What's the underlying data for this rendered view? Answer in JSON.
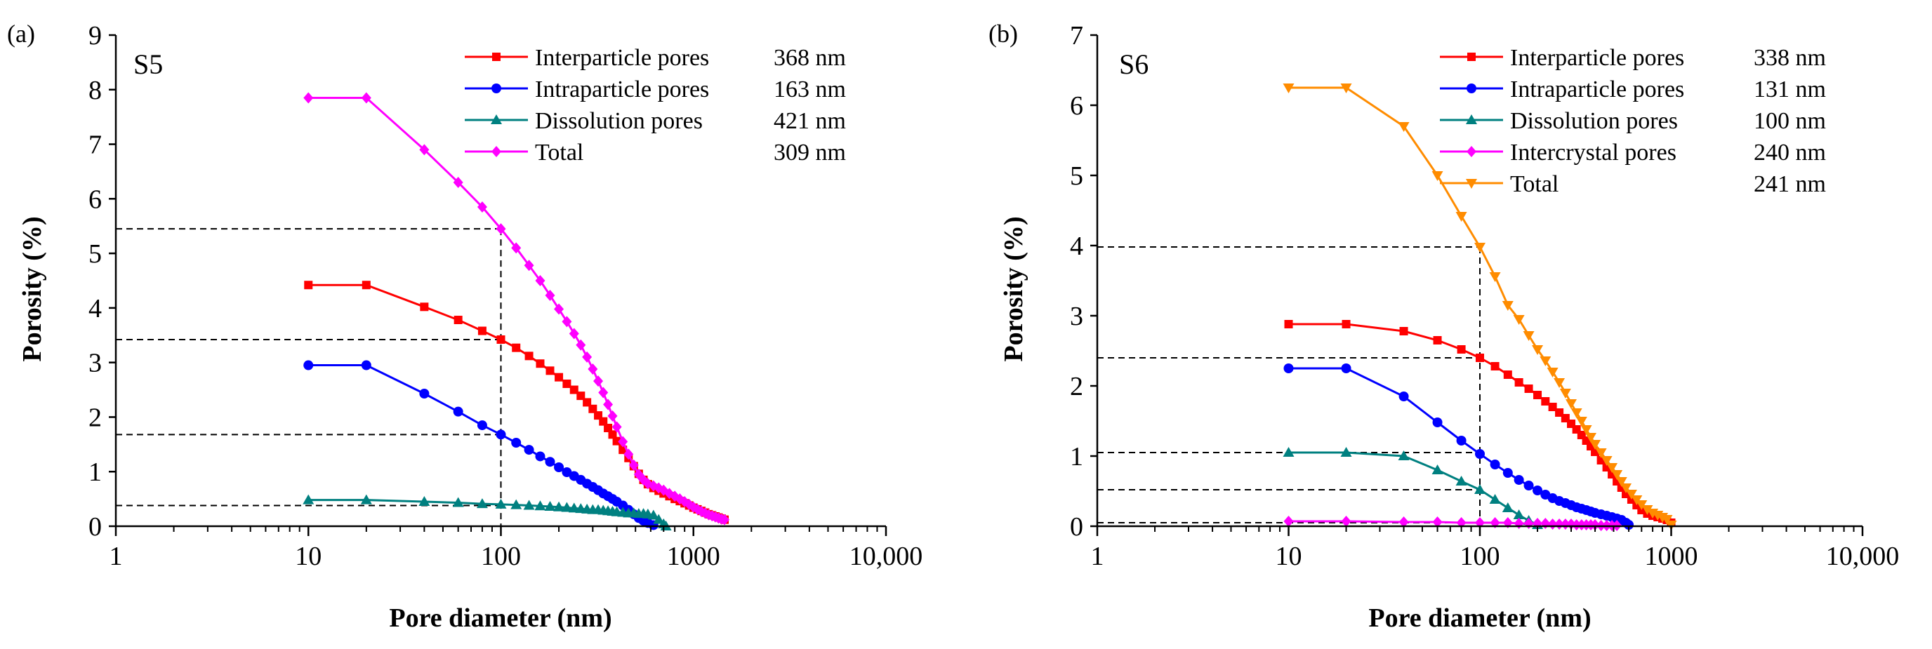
{
  "figure": {
    "panels": [
      "(a)",
      "(b)"
    ]
  },
  "chart_data": [
    {
      "type": "line",
      "panel_label": "(a)",
      "title": "S5",
      "xlabel": "Pore diameter (nm)",
      "ylabel": "Porosity (%)",
      "xscale": "log",
      "xlim": [
        1,
        10000
      ],
      "ylim": [
        0,
        9
      ],
      "x_ticks": [
        1,
        10,
        100,
        1000,
        10000
      ],
      "x_tick_labels": [
        "1",
        "10",
        "100",
        "1000",
        "10,000"
      ],
      "y_ticks": [
        0,
        1,
        2,
        3,
        4,
        5,
        6,
        7,
        8,
        9
      ],
      "y_tick_labels": [
        "0",
        "1",
        "2",
        "3",
        "4",
        "5",
        "6",
        "7",
        "8",
        "9"
      ],
      "legend_position": "top-right",
      "guides": {
        "x": 100,
        "y": [
          5.45,
          3.42,
          1.68,
          0.38
        ]
      },
      "series": [
        {
          "name": "Interparticle pores",
          "value_label": "368 nm",
          "color": "#ff0000",
          "marker": "square",
          "x": [
            10,
            20,
            40,
            60,
            80,
            100,
            120,
            140,
            160,
            180,
            200,
            220,
            240,
            260,
            280,
            300,
            320,
            340,
            360,
            380,
            400,
            430,
            460,
            490,
            520,
            550,
            580,
            620,
            660,
            700,
            750,
            800,
            850,
            900,
            950,
            1000,
            1050,
            1100,
            1150,
            1200,
            1250,
            1300,
            1350,
            1400,
            1450
          ],
          "y": [
            4.42,
            4.42,
            4.02,
            3.78,
            3.58,
            3.42,
            3.27,
            3.12,
            2.98,
            2.85,
            2.73,
            2.61,
            2.5,
            2.39,
            2.27,
            2.15,
            2.03,
            1.92,
            1.8,
            1.68,
            1.56,
            1.4,
            1.25,
            1.1,
            0.96,
            0.85,
            0.77,
            0.7,
            0.65,
            0.6,
            0.55,
            0.5,
            0.46,
            0.42,
            0.38,
            0.34,
            0.31,
            0.28,
            0.25,
            0.22,
            0.2,
            0.18,
            0.16,
            0.14,
            0.12
          ]
        },
        {
          "name": "Intraparticle pores",
          "value_label": "163 nm",
          "color": "#0000ff",
          "marker": "circle",
          "x": [
            10,
            20,
            40,
            60,
            80,
            100,
            120,
            140,
            160,
            180,
            200,
            220,
            240,
            260,
            280,
            300,
            320,
            340,
            360,
            380,
            400,
            430,
            460,
            490,
            520,
            550,
            580,
            620
          ],
          "y": [
            2.95,
            2.95,
            2.43,
            2.1,
            1.85,
            1.68,
            1.53,
            1.4,
            1.28,
            1.18,
            1.08,
            0.99,
            0.92,
            0.85,
            0.78,
            0.72,
            0.66,
            0.6,
            0.55,
            0.5,
            0.45,
            0.38,
            0.3,
            0.22,
            0.15,
            0.1,
            0.06,
            0.02
          ]
        },
        {
          "name": "Dissolution pores",
          "value_label": "421 nm",
          "color": "#008080",
          "marker": "triangle",
          "x": [
            10,
            20,
            40,
            60,
            80,
            100,
            120,
            140,
            160,
            180,
            200,
            220,
            240,
            260,
            280,
            300,
            320,
            340,
            360,
            380,
            400,
            430,
            460,
            490,
            520,
            550,
            580,
            620,
            660,
            700,
            720
          ],
          "y": [
            0.48,
            0.48,
            0.45,
            0.43,
            0.41,
            0.4,
            0.39,
            0.38,
            0.37,
            0.36,
            0.35,
            0.34,
            0.33,
            0.32,
            0.31,
            0.3,
            0.3,
            0.29,
            0.28,
            0.27,
            0.26,
            0.25,
            0.24,
            0.24,
            0.23,
            0.23,
            0.22,
            0.2,
            0.12,
            0.04,
            0.0
          ]
        },
        {
          "name": "Total",
          "value_label": "309 nm",
          "color": "#ff00ff",
          "marker": "diamond",
          "x": [
            10,
            20,
            40,
            60,
            80,
            100,
            120,
            140,
            160,
            180,
            200,
            220,
            240,
            260,
            280,
            300,
            320,
            340,
            360,
            380,
            400,
            430,
            460,
            490,
            520,
            550,
            580,
            620,
            660,
            700,
            750,
            800,
            850,
            900,
            950,
            1000,
            1050,
            1100,
            1150,
            1200,
            1250,
            1300,
            1350,
            1400,
            1450
          ],
          "y": [
            7.85,
            7.85,
            6.9,
            6.3,
            5.85,
            5.45,
            5.1,
            4.78,
            4.5,
            4.23,
            3.98,
            3.75,
            3.53,
            3.32,
            3.1,
            2.88,
            2.66,
            2.45,
            2.23,
            2.02,
            1.82,
            1.55,
            1.32,
            1.12,
            0.95,
            0.85,
            0.78,
            0.74,
            0.7,
            0.66,
            0.6,
            0.55,
            0.5,
            0.45,
            0.4,
            0.35,
            0.31,
            0.27,
            0.24,
            0.21,
            0.19,
            0.17,
            0.15,
            0.13,
            0.12
          ]
        }
      ]
    },
    {
      "type": "line",
      "panel_label": "(b)",
      "title": "S6",
      "xlabel": "Pore diameter (nm)",
      "ylabel": "Porosity (%)",
      "xscale": "log",
      "xlim": [
        1,
        10000
      ],
      "ylim": [
        0,
        7
      ],
      "x_ticks": [
        1,
        10,
        100,
        1000,
        10000
      ],
      "x_tick_labels": [
        "1",
        "10",
        "100",
        "1000",
        "10,000"
      ],
      "y_ticks": [
        0,
        1,
        2,
        3,
        4,
        5,
        6,
        7
      ],
      "y_tick_labels": [
        "0",
        "1",
        "2",
        "3",
        "4",
        "5",
        "6",
        "7"
      ],
      "legend_position": "top-right",
      "guides": {
        "x": 100,
        "y": [
          3.98,
          2.4,
          1.05,
          0.52,
          0.05
        ]
      },
      "series": [
        {
          "name": "Interparticle pores",
          "value_label": "338 nm",
          "color": "#ff0000",
          "marker": "square",
          "x": [
            10,
            20,
            40,
            60,
            80,
            100,
            120,
            140,
            160,
            180,
            200,
            220,
            240,
            260,
            280,
            300,
            320,
            340,
            360,
            380,
            400,
            430,
            460,
            490,
            520,
            550,
            580,
            620,
            660,
            700,
            750,
            800,
            850,
            900,
            950,
            1000
          ],
          "y": [
            2.88,
            2.88,
            2.78,
            2.65,
            2.52,
            2.4,
            2.28,
            2.16,
            2.05,
            1.96,
            1.87,
            1.78,
            1.7,
            1.62,
            1.54,
            1.46,
            1.38,
            1.3,
            1.22,
            1.14,
            1.06,
            0.94,
            0.84,
            0.74,
            0.64,
            0.55,
            0.46,
            0.38,
            0.3,
            0.23,
            0.18,
            0.15,
            0.13,
            0.11,
            0.09,
            0.05
          ]
        },
        {
          "name": "Intraparticle pores",
          "value_label": "131 nm",
          "color": "#0000ff",
          "marker": "circle",
          "x": [
            10,
            20,
            40,
            60,
            80,
            100,
            120,
            140,
            160,
            180,
            200,
            220,
            240,
            260,
            280,
            300,
            320,
            340,
            360,
            380,
            400,
            430,
            460,
            490,
            520,
            550,
            580,
            600
          ],
          "y": [
            2.25,
            2.25,
            1.85,
            1.48,
            1.22,
            1.03,
            0.88,
            0.76,
            0.66,
            0.58,
            0.51,
            0.45,
            0.4,
            0.36,
            0.33,
            0.3,
            0.27,
            0.25,
            0.23,
            0.21,
            0.19,
            0.17,
            0.15,
            0.13,
            0.11,
            0.09,
            0.05,
            0.02
          ]
        },
        {
          "name": "Dissolution pores",
          "value_label": "100 nm",
          "color": "#008080",
          "marker": "triangle",
          "x": [
            10,
            20,
            40,
            60,
            80,
            100,
            120,
            140,
            160,
            180,
            200
          ],
          "y": [
            1.05,
            1.05,
            1.0,
            0.8,
            0.64,
            0.52,
            0.38,
            0.26,
            0.16,
            0.08,
            0.02
          ]
        },
        {
          "name": "Intercrystal pores",
          "value_label": "240 nm",
          "color": "#ff00ff",
          "marker": "diamond",
          "x": [
            10,
            20,
            40,
            60,
            80,
            100,
            120,
            140,
            160,
            180,
            200,
            220,
            240,
            260,
            280,
            300,
            320,
            340,
            360,
            380,
            400,
            430,
            460,
            490,
            520
          ],
          "y": [
            0.07,
            0.07,
            0.06,
            0.06,
            0.05,
            0.05,
            0.05,
            0.05,
            0.04,
            0.04,
            0.04,
            0.04,
            0.03,
            0.03,
            0.03,
            0.03,
            0.02,
            0.02,
            0.02,
            0.02,
            0.02,
            0.01,
            0.01,
            0.01,
            0.01
          ]
        },
        {
          "name": "Total",
          "value_label": "241 nm",
          "color": "#ff8c00",
          "marker": "triangle-down",
          "x": [
            10,
            20,
            40,
            60,
            80,
            100,
            120,
            140,
            160,
            180,
            200,
            220,
            240,
            260,
            280,
            300,
            320,
            340,
            360,
            380,
            400,
            430,
            460,
            490,
            520,
            550,
            580,
            620,
            660,
            700,
            750,
            800,
            850,
            900,
            950,
            1000
          ],
          "y": [
            6.25,
            6.25,
            5.7,
            5.0,
            4.42,
            3.98,
            3.56,
            3.15,
            2.95,
            2.72,
            2.52,
            2.36,
            2.2,
            2.05,
            1.9,
            1.75,
            1.62,
            1.5,
            1.38,
            1.27,
            1.17,
            1.05,
            0.94,
            0.84,
            0.74,
            0.64,
            0.55,
            0.46,
            0.38,
            0.31,
            0.24,
            0.19,
            0.16,
            0.13,
            0.1,
            0.02
          ]
        }
      ]
    }
  ]
}
